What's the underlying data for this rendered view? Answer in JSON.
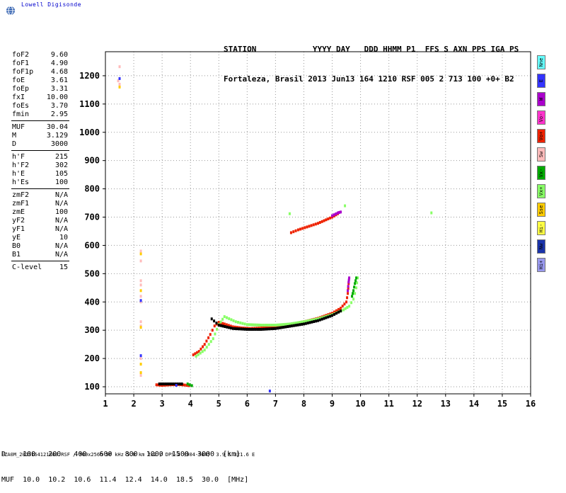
{
  "brand": {
    "name": "Lowell Digisonde",
    "logo_icon": "globe-icon"
  },
  "header": {
    "line1": "STATION            YYYY DAY   DDD HHMM P1  FFS S AXN PPS IGA PS",
    "line2": "Fortaleza, Brasil 2013 Jun13 164 1210 RSF 005 2 713 100 +0+ B2"
  },
  "params": {
    "group1": [
      {
        "name": "foF2",
        "value": "9.60"
      },
      {
        "name": "foF1",
        "value": "4.90"
      },
      {
        "name": "foF1p",
        "value": "4.68"
      },
      {
        "name": "foE",
        "value": "3.61"
      },
      {
        "name": "foEp",
        "value": "3.31"
      },
      {
        "name": "fxI",
        "value": "10.00"
      },
      {
        "name": "foEs",
        "value": "3.70"
      },
      {
        "name": "fmin",
        "value": "2.95"
      }
    ],
    "group2": [
      {
        "name": "MUF",
        "value": "30.04"
      },
      {
        "name": "M",
        "value": "3.129"
      },
      {
        "name": "D",
        "value": "3000"
      }
    ],
    "group3": [
      {
        "name": "h'F",
        "value": "215"
      },
      {
        "name": "h'F2",
        "value": "302"
      },
      {
        "name": "h'E",
        "value": "105"
      },
      {
        "name": "h'Es",
        "value": "100"
      }
    ],
    "group4": [
      {
        "name": "zmF2",
        "value": "N/A"
      },
      {
        "name": "zmF1",
        "value": "N/A"
      },
      {
        "name": "zmE",
        "value": "100"
      },
      {
        "name": "yF2",
        "value": "N/A"
      },
      {
        "name": "yF1",
        "value": "N/A"
      },
      {
        "name": "yE",
        "value": "10"
      },
      {
        "name": "B0",
        "value": "N/A"
      },
      {
        "name": "B1",
        "value": "N/A"
      }
    ],
    "group5": [
      {
        "name": "C-level",
        "value": "15"
      }
    ]
  },
  "muf_table": {
    "line1": "D    100   200   400   600   800  1000  1500  3000  [km]",
    "line2": "MUF  10.0  10.2  10.6  11.4  12.4  14.0  18.5  30.0  [MHz]"
  },
  "footer": "FZA0M_2013164121000.RSF / 300x256h 50 kHz 5.0 km 2x2 / DPS-4 (904-904)  3.9 S 321.6 E",
  "legend": [
    {
      "label": "Nne",
      "color": "#66ffff"
    },
    {
      "label": "E",
      "color": "#3333ff"
    },
    {
      "label": "W",
      "color": "#aa00cc"
    },
    {
      "label": "Vo-",
      "color": "#ff33cc"
    },
    {
      "label": "Vo+",
      "color": "#ee2200"
    },
    {
      "label": "Sw",
      "color": "#ffbbbb"
    },
    {
      "label": "Vx-",
      "color": "#00aa00"
    },
    {
      "label": "Vx+",
      "color": "#88ff66"
    },
    {
      "label": "Sse",
      "color": "#ffcc00"
    },
    {
      "label": "Hi-",
      "color": "#ffff44"
    },
    {
      "label": "Nw",
      "color": "#1a33aa"
    },
    {
      "label": "Hi+",
      "color": "#9999ee"
    }
  ],
  "chart_data": {
    "type": "scatter",
    "title": "",
    "xlabel": "",
    "ylabel": "",
    "xlim": [
      1,
      16
    ],
    "ylim": [
      75,
      1285
    ],
    "xticks": [
      1,
      2,
      3,
      4,
      5,
      6,
      7,
      8,
      9,
      10,
      11,
      12,
      13,
      14,
      15,
      16
    ],
    "yticks": [
      100,
      200,
      300,
      400,
      500,
      600,
      700,
      800,
      900,
      1000,
      1100,
      1200
    ],
    "series": [
      {
        "color": "#ee2200",
        "points": [
          [
            4.1,
            213
          ],
          [
            4.3,
            225
          ],
          [
            4.5,
            250
          ],
          [
            4.7,
            285
          ],
          [
            4.85,
            315
          ],
          [
            5.0,
            328
          ],
          [
            5.2,
            322
          ],
          [
            5.5,
            312
          ],
          [
            5.8,
            308
          ],
          [
            6.1,
            306
          ],
          [
            6.5,
            308
          ],
          [
            7.0,
            313
          ],
          [
            7.5,
            320
          ],
          [
            8.0,
            330
          ],
          [
            8.5,
            342
          ],
          [
            9.0,
            360
          ],
          [
            9.3,
            378
          ],
          [
            9.5,
            400
          ],
          [
            9.55,
            430
          ],
          [
            9.58,
            465
          ]
        ]
      },
      {
        "color": "#88ff66",
        "points": [
          [
            4.2,
            208
          ],
          [
            4.5,
            230
          ],
          [
            4.8,
            270
          ],
          [
            5.0,
            320
          ],
          [
            5.2,
            348
          ],
          [
            5.6,
            330
          ],
          [
            6.0,
            320
          ],
          [
            6.5,
            318
          ],
          [
            7.0,
            318
          ],
          [
            7.5,
            322
          ],
          [
            8.0,
            330
          ],
          [
            8.5,
            340
          ],
          [
            9.0,
            355
          ],
          [
            9.4,
            372
          ],
          [
            9.6,
            385
          ],
          [
            9.75,
            410
          ],
          [
            9.85,
            450
          ],
          [
            9.9,
            485
          ]
        ]
      },
      {
        "color": "#000000",
        "points": [
          [
            4.75,
            340
          ],
          [
            5.0,
            318
          ],
          [
            5.5,
            306
          ],
          [
            6.0,
            303
          ],
          [
            6.5,
            303
          ],
          [
            7.0,
            306
          ],
          [
            7.5,
            314
          ],
          [
            8.0,
            322
          ],
          [
            8.5,
            334
          ],
          [
            9.0,
            352
          ],
          [
            9.3,
            368
          ]
        ]
      },
      {
        "color": "#00aa00",
        "points": [
          [
            9.7,
            420
          ],
          [
            9.75,
            440
          ],
          [
            9.8,
            465
          ],
          [
            9.85,
            485
          ]
        ]
      },
      {
        "color": "#aa00cc",
        "points": [
          [
            9.55,
            440
          ],
          [
            9.58,
            470
          ],
          [
            9.6,
            485
          ]
        ]
      },
      {
        "color": "#ee2200",
        "points": [
          [
            7.55,
            645
          ],
          [
            7.8,
            655
          ],
          [
            8.5,
            678
          ],
          [
            9.0,
            700
          ],
          [
            9.2,
            712
          ]
        ]
      },
      {
        "color": "#aa00cc",
        "points": [
          [
            9.0,
            705
          ],
          [
            9.2,
            715
          ],
          [
            9.3,
            718
          ]
        ]
      },
      {
        "color": "#88ff66",
        "points": [
          [
            9.45,
            740
          ],
          [
            7.5,
            712
          ],
          [
            12.5,
            715
          ]
        ]
      },
      {
        "color": "#ee2200",
        "points": [
          [
            2.8,
            107
          ],
          [
            3.0,
            105
          ],
          [
            3.3,
            107
          ],
          [
            3.6,
            108
          ],
          [
            3.8,
            106
          ],
          [
            3.95,
            104
          ]
        ]
      },
      {
        "color": "#000000",
        "points": [
          [
            2.9,
            110
          ],
          [
            3.4,
            110
          ],
          [
            3.7,
            110
          ]
        ]
      },
      {
        "color": "#00aa00",
        "points": [
          [
            3.9,
            110
          ],
          [
            4.05,
            104
          ]
        ]
      },
      {
        "color": "#3333ff",
        "points": [
          [
            3.5,
            105
          ],
          [
            6.8,
            85
          ]
        ]
      },
      {
        "color": "#ffbbbb",
        "points": [
          [
            1.5,
            1232
          ],
          [
            1.45,
            1182
          ],
          [
            1.5,
            1170
          ],
          [
            2.25,
            580
          ],
          [
            2.25,
            545
          ],
          [
            2.25,
            475
          ],
          [
            2.25,
            460
          ],
          [
            2.25,
            420
          ],
          [
            2.25,
            400
          ],
          [
            2.25,
            330
          ],
          [
            2.25,
            315
          ],
          [
            2.25,
            200
          ],
          [
            2.25,
            140
          ]
        ]
      },
      {
        "color": "#ffcc00",
        "points": [
          [
            1.5,
            1160
          ],
          [
            2.25,
            570
          ],
          [
            2.25,
            440
          ],
          [
            2.25,
            310
          ],
          [
            2.25,
            180
          ],
          [
            2.25,
            150
          ]
        ]
      },
      {
        "color": "#3333ff",
        "points": [
          [
            1.5,
            1190
          ],
          [
            2.25,
            405
          ],
          [
            2.25,
            210
          ]
        ]
      }
    ]
  }
}
